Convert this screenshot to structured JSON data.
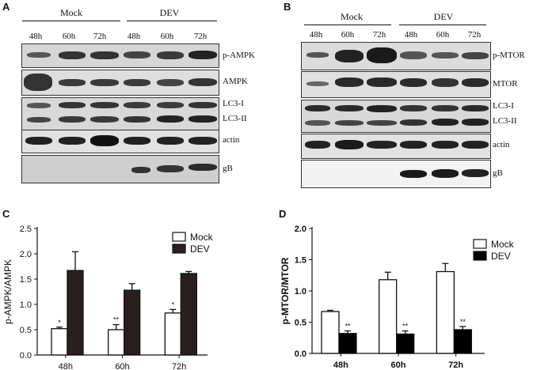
{
  "panels": {
    "A": {
      "letter": "A",
      "groups": [
        "Mock",
        "DEV"
      ],
      "times": [
        "48h",
        "60h",
        "72h",
        "48h",
        "60h",
        "72h"
      ],
      "blots": [
        "p-AMPK",
        "AMPK",
        "LC3-I",
        "LC3-II",
        "actin",
        "gB"
      ]
    },
    "B": {
      "letter": "B",
      "groups": [
        "Mock",
        "DEV"
      ],
      "times": [
        "48h",
        "60h",
        "72h",
        "48h",
        "60h",
        "72h"
      ],
      "blots": [
        "p-MTOR",
        "MTOR",
        "LC3-I",
        "LC3-II",
        "actin",
        "gB"
      ]
    },
    "C": {
      "letter": "C"
    },
    "D": {
      "letter": "D"
    }
  },
  "chart_data": [
    {
      "type": "bar",
      "panel": "C",
      "categories": [
        "48h",
        "60h",
        "72h"
      ],
      "series": [
        {
          "name": "Mock",
          "values": [
            0.52,
            0.5,
            0.83
          ],
          "errors": [
            0.03,
            0.1,
            0.07
          ],
          "color": "#ffffff",
          "sig": [
            "*",
            "**",
            "*"
          ]
        },
        {
          "name": "DEV",
          "values": [
            1.67,
            1.28,
            1.61
          ],
          "errors": [
            0.37,
            0.13,
            0.04
          ],
          "color": "#2a1f1f",
          "sig": [
            "",
            "",
            ""
          ]
        }
      ],
      "ylabel": "p-AMPK/AMPK",
      "ylim": [
        0,
        2.5
      ],
      "yticks": [
        "0.0",
        "0.5",
        "1.0",
        "1.5",
        "2.0",
        "2.5"
      ],
      "legend": "top-right"
    },
    {
      "type": "bar",
      "panel": "D",
      "categories": [
        "48h",
        "60h",
        "72h"
      ],
      "series": [
        {
          "name": "Mock",
          "values": [
            0.67,
            1.18,
            1.31
          ],
          "errors": [
            0.02,
            0.12,
            0.13
          ],
          "color": "#ffffff",
          "sig": [
            "",
            "",
            ""
          ]
        },
        {
          "name": "DEV",
          "values": [
            0.32,
            0.31,
            0.38
          ],
          "errors": [
            0.04,
            0.05,
            0.05
          ],
          "color": "#000000",
          "sig": [
            "**",
            "**",
            "**"
          ]
        }
      ],
      "ylabel": "p-MTOR/MTOR",
      "ylim": [
        0,
        2.0
      ],
      "yticks": [
        "0.0",
        "0.5",
        "1.0",
        "1.5",
        "2.0"
      ],
      "legend": "top-right"
    }
  ]
}
